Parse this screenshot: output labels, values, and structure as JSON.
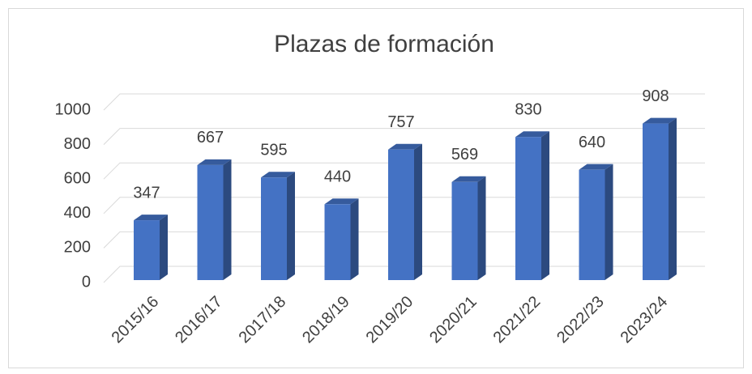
{
  "chart_data": {
    "type": "bar",
    "title": "Plazas de formación",
    "categories": [
      "2015/16",
      "2016/17",
      "2017/18",
      "2018/19",
      "2019/20",
      "2020/21",
      "2021/22",
      "2022/23",
      "2023/24"
    ],
    "values": [
      347,
      667,
      595,
      440,
      757,
      569,
      830,
      640,
      908
    ],
    "color": "#4472c4",
    "ylim": [
      0,
      1000
    ],
    "yticks": [
      0,
      200,
      400,
      600,
      800,
      1000
    ],
    "grid": true
  }
}
